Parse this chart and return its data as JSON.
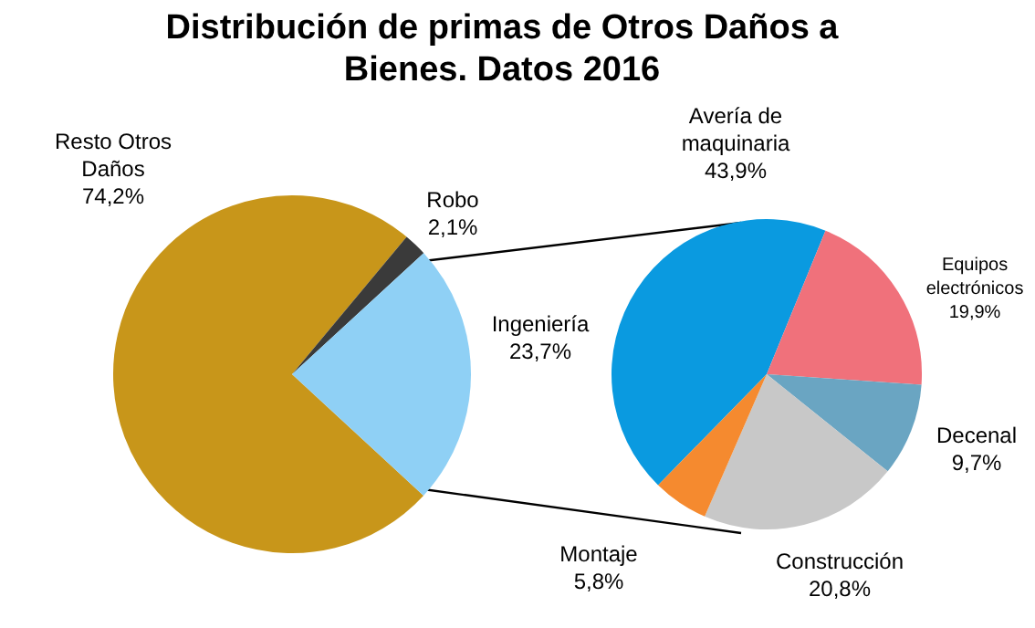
{
  "chart_data": [
    {
      "type": "pie",
      "title": "Distribución de primas de Otros Daños a Bienes. Datos 2016",
      "categories": [
        "Resto Otros Daños",
        "Robo",
        "Ingeniería"
      ],
      "values": [
        74.2,
        2.1,
        23.7
      ],
      "colors": [
        "#c8961a",
        "#3a3a3a",
        "#8fd0f5"
      ],
      "value_labels": [
        "74,2%",
        "2,1%",
        "23,7%"
      ],
      "legend": false
    },
    {
      "type": "pie",
      "categories": [
        "Avería de maquinaria",
        "Equipos electrónicos",
        "Decenal",
        "Construcción",
        "Montaje"
      ],
      "values": [
        43.9,
        19.9,
        9.7,
        20.8,
        5.8
      ],
      "colors": [
        "#0a9ae0",
        "#f0717b",
        "#6aa5c2",
        "#c8c8c8",
        "#f58a2f"
      ],
      "value_labels": [
        "43,9%",
        "19,9%",
        "9,7%",
        "20,8%",
        "5,8%"
      ],
      "legend": false
    }
  ]
}
